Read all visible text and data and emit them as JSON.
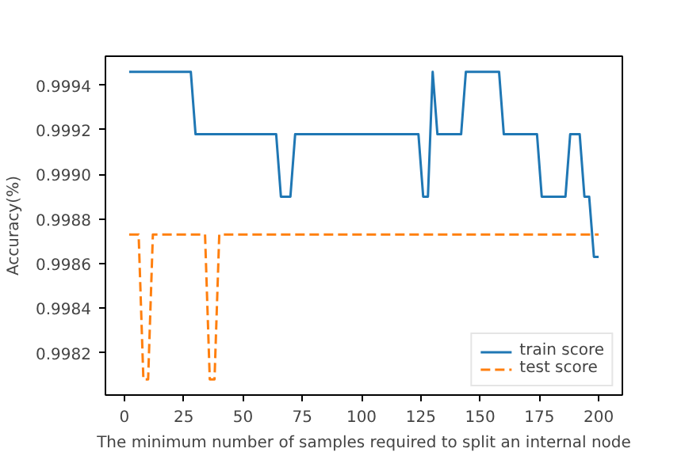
{
  "chart_data": {
    "type": "line",
    "xlabel": "The minimum number of samples required to split an internal node",
    "ylabel": "Accuracy(%)",
    "xlim": [
      -8,
      210
    ],
    "xticks": [
      0,
      25,
      50,
      75,
      100,
      125,
      150,
      175,
      200
    ],
    "ylim": [
      0.99801,
      0.99953
    ],
    "yticks": [
      0.9982,
      0.9984,
      0.9986,
      0.9988,
      {
        "value": 0.999,
        "label": "0.9990"
      },
      0.9992,
      0.9994
    ],
    "grid": false,
    "legend": "bottom right",
    "series": [
      {
        "name": "train score",
        "color": "#1f77b4",
        "line_style": "solid",
        "x": [
          2,
          28,
          30,
          64,
          66,
          70,
          72,
          124,
          126,
          128,
          130,
          132,
          142,
          144,
          158,
          160,
          174,
          176,
          186,
          188,
          192,
          194,
          196,
          198,
          200
        ],
        "values": [
          0.99946,
          0.99946,
          0.99918,
          0.99918,
          0.9989,
          0.9989,
          0.99918,
          0.99918,
          0.9989,
          0.9989,
          0.99946,
          0.99918,
          0.99918,
          0.99946,
          0.99946,
          0.99918,
          0.99918,
          0.9989,
          0.9989,
          0.99918,
          0.99918,
          0.9989,
          0.9989,
          0.99863,
          0.99863
        ]
      },
      {
        "name": "test score",
        "color": "#ff7f0e",
        "line_style": "dashed",
        "x": [
          2,
          6,
          8,
          10,
          12,
          34,
          36,
          38,
          40,
          200
        ],
        "values": [
          0.99873,
          0.99873,
          0.99808,
          0.99808,
          0.99873,
          0.99873,
          0.99808,
          0.99808,
          0.99873,
          0.99873
        ]
      }
    ]
  }
}
